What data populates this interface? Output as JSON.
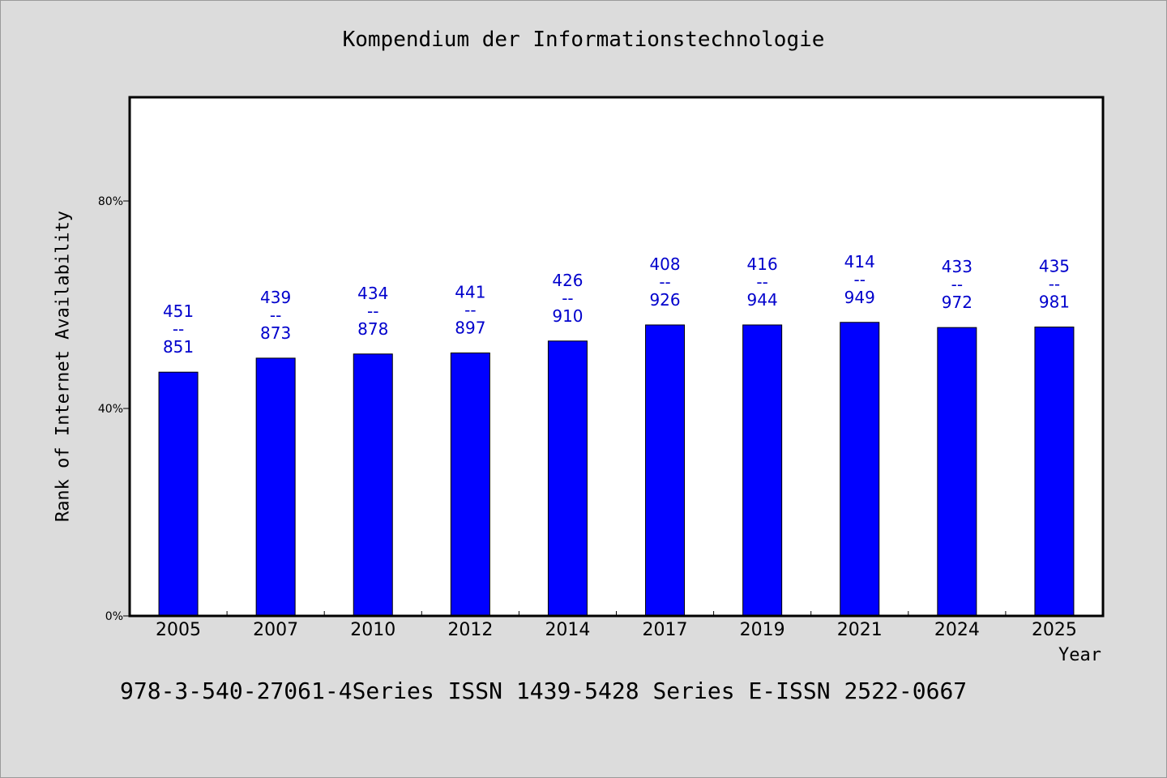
{
  "chart_data": {
    "type": "bar",
    "title": "Kompendium der Informationstechnologie",
    "xlabel": "Year",
    "ylabel": "Rank of Internet Availability",
    "categories": [
      "2005",
      "2007",
      "2010",
      "2012",
      "2014",
      "2017",
      "2019",
      "2021",
      "2024",
      "2025"
    ],
    "values": [
      47.0,
      49.7,
      50.5,
      50.7,
      53.0,
      56.1,
      56.1,
      56.6,
      55.6,
      55.7
    ],
    "labels_top": [
      "451",
      "439",
      "434",
      "441",
      "426",
      "408",
      "416",
      "414",
      "433",
      "435"
    ],
    "labels_sep": "--",
    "labels_bottom": [
      "851",
      "873",
      "878",
      "897",
      "910",
      "926",
      "944",
      "949",
      "972",
      "981"
    ],
    "yticks": [
      0,
      40,
      80
    ],
    "ytick_labels": [
      "0%",
      "40%",
      "80%"
    ],
    "ylim": [
      0,
      100
    ],
    "grid": false,
    "bar_color": "#0000ff",
    "label_color": "#0000cc"
  },
  "footer": {
    "text": "978-3-540-27061-4Series ISSN 1439-5428 Series E-ISSN 2522-0667"
  }
}
